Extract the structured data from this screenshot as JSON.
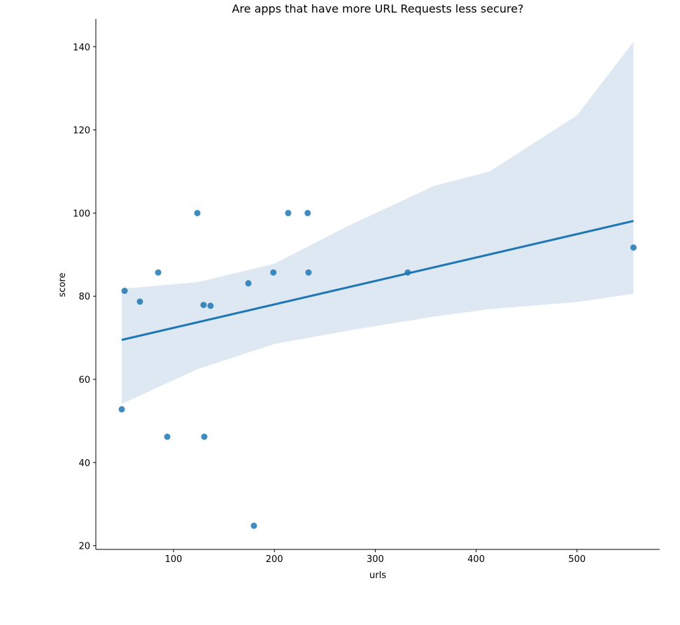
{
  "chart_data": {
    "type": "scatter",
    "title": "Are apps that have more URL Requests less secure?",
    "xlabel": "urls",
    "ylabel": "score",
    "xlim": [
      23,
      582
    ],
    "ylim": [
      19.1,
      146.7
    ],
    "xticks": [
      100,
      200,
      300,
      400,
      500
    ],
    "yticks": [
      20,
      40,
      60,
      80,
      100,
      120,
      140
    ],
    "grid": false,
    "colors": {
      "points": "#1f77b4",
      "line": "#1f77b4",
      "band": "#dde8f2"
    },
    "points": [
      {
        "x": 48.7,
        "y": 52.8
      },
      {
        "x": 51.5,
        "y": 81.3
      },
      {
        "x": 66.7,
        "y": 78.7
      },
      {
        "x": 84.8,
        "y": 85.7
      },
      {
        "x": 93.8,
        "y": 46.2
      },
      {
        "x": 123.6,
        "y": 100
      },
      {
        "x": 129.8,
        "y": 77.9
      },
      {
        "x": 130.5,
        "y": 46.2
      },
      {
        "x": 136.7,
        "y": 77.7
      },
      {
        "x": 174.2,
        "y": 83.1
      },
      {
        "x": 179.7,
        "y": 24.8
      },
      {
        "x": 199,
        "y": 85.7
      },
      {
        "x": 213.7,
        "y": 100
      },
      {
        "x": 233,
        "y": 100
      },
      {
        "x": 233.8,
        "y": 85.7
      },
      {
        "x": 332.2,
        "y": 85.7
      },
      {
        "x": 556,
        "y": 91.7
      }
    ],
    "regression": {
      "x": [
        48.7,
        556
      ],
      "y": [
        69.5,
        98.1
      ]
    },
    "confidence_band": {
      "x": [
        48.7,
        124.3,
        199.8,
        274.8,
        358,
        413.3,
        500,
        556
      ],
      "upper": [
        81.75,
        83.4,
        87.8,
        97.1,
        106.5,
        110.0,
        123.5,
        141.2
      ],
      "lower": [
        54.1,
        62.5,
        68.5,
        71.8,
        75.1,
        76.9,
        78.6,
        80.6
      ]
    }
  }
}
